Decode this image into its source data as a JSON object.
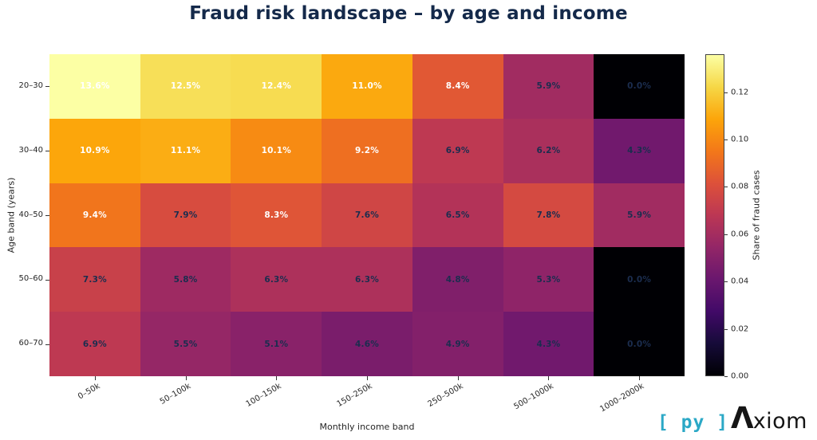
{
  "title": "Fraud risk landscape – by age and income",
  "chart_data": {
    "type": "heatmap",
    "title": "Fraud risk landscape – by age and income",
    "xlabel": "Monthly income band",
    "ylabel": "Age band (years)",
    "x_categories": [
      "0–50k",
      "50–100k",
      "100–150k",
      "150–250k",
      "250–500k",
      "500–1000k",
      "1000–2000k"
    ],
    "y_categories": [
      "20–30",
      "30–40",
      "40–50",
      "50–60",
      "60–70"
    ],
    "values_pct": [
      [
        13.6,
        12.5,
        12.4,
        11.0,
        8.4,
        5.9,
        0.0
      ],
      [
        10.9,
        11.1,
        10.1,
        9.2,
        6.9,
        6.2,
        4.3
      ],
      [
        9.4,
        7.9,
        8.3,
        7.6,
        6.5,
        7.8,
        5.9
      ],
      [
        7.3,
        5.8,
        6.3,
        6.3,
        4.8,
        5.3,
        0.0
      ],
      [
        6.9,
        5.5,
        5.1,
        4.6,
        4.9,
        4.3,
        0.0
      ]
    ],
    "value_suffix": "%",
    "colorbar": {
      "label": "Share of fraud cases",
      "tick_labels": [
        "0.00",
        "0.02",
        "0.04",
        "0.06",
        "0.08",
        "0.10",
        "0.12"
      ],
      "tick_values": [
        0.0,
        0.02,
        0.04,
        0.06,
        0.08,
        0.1,
        0.12
      ],
      "vmin": 0.0,
      "vmax": 0.136
    },
    "colormap": {
      "name": "inferno",
      "stops": [
        "#000004",
        "#160b39",
        "#420a68",
        "#6a176e",
        "#932667",
        "#bc3754",
        "#dd513a",
        "#f37819",
        "#fca50a",
        "#f6d746",
        "#fcffa4"
      ]
    },
    "cell_label_colors": {
      "white": "#ffffff",
      "dark": "#1b2d4f",
      "white_if_gte_pct": 8.0
    },
    "grid": false,
    "legend_position": "colorbar-right"
  },
  "branding": {
    "logo_py": "[ py ]",
    "logo_lambda": "Λ",
    "logo_rest": "xiom",
    "cyan": "#2ba8c6",
    "dark": "#151515"
  },
  "colors": {
    "title": "#14294a",
    "background": "#ffffff",
    "axis_text": "#262626"
  }
}
